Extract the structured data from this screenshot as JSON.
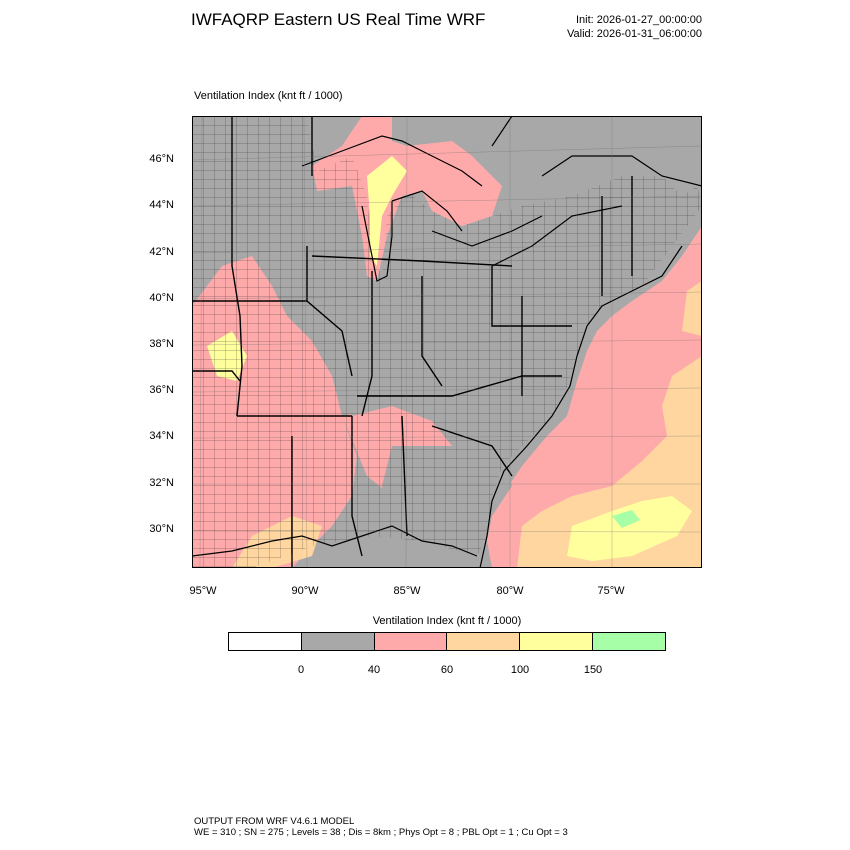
{
  "header": {
    "title": "IWFAQRP Eastern US Real Time WRF",
    "init": "Init: 2026-01-27_00:00:00",
    "valid": "Valid: 2026-01-31_06:00:00"
  },
  "plot": {
    "label": "Ventilation Index   (knt ft / 1000)"
  },
  "axes": {
    "lat_labels": [
      "46°N",
      "44°N",
      "42°N",
      "40°N",
      "38°N",
      "36°N",
      "34°N",
      "32°N",
      "30°N"
    ],
    "lon_labels": [
      "95°W",
      "90°W",
      "85°W",
      "80°W",
      "75°W"
    ]
  },
  "colorbar": {
    "label": "Ventilation Index  (knt ft / 1000)",
    "ticks": [
      "0",
      "40",
      "60",
      "100",
      "150"
    ],
    "colors": [
      "#ffffff",
      "#a8a8a8",
      "#ffaaaa",
      "#ffd6a0",
      "#ffff9e",
      "#a6ffa6"
    ]
  },
  "footer": {
    "line1": "OUTPUT FROM WRF V4.6.1 MODEL",
    "line2": "WE = 310 ; SN = 275 ; Levels = 38 ; Dis = 8km ; Phys Opt = 8 ; PBL Opt = 1 ; Cu Opt = 3"
  }
}
